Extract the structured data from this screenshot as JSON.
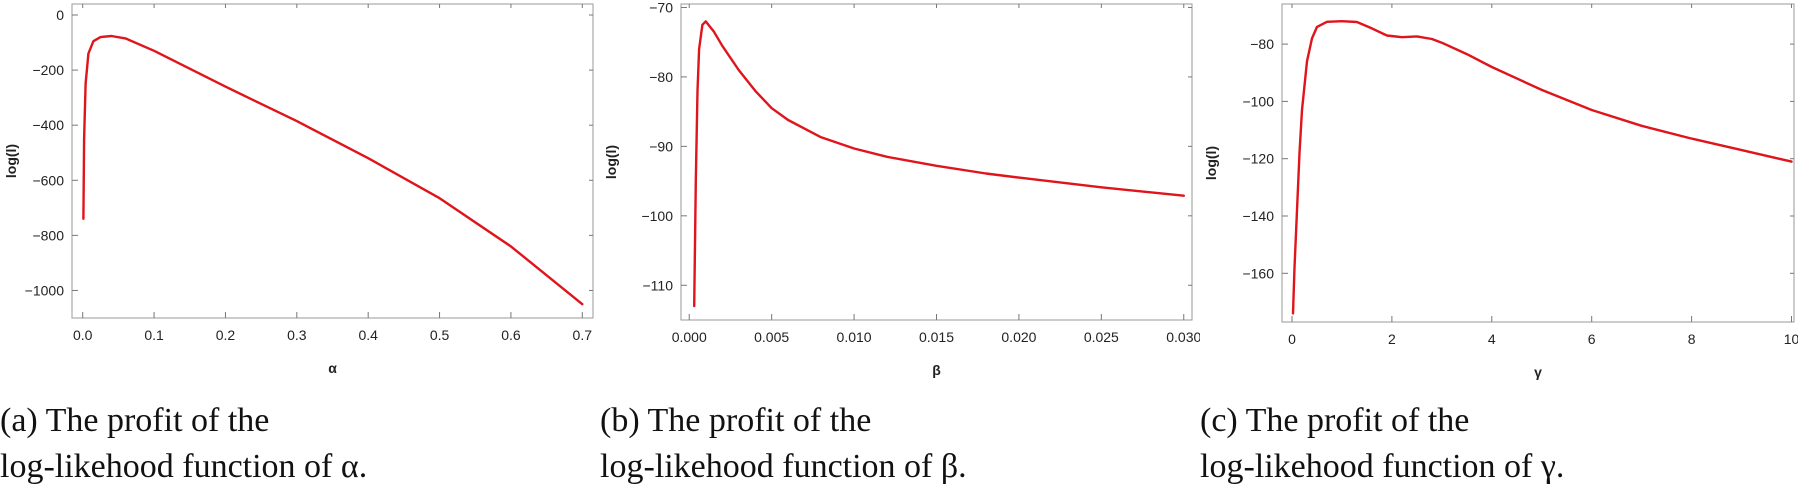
{
  "chart_data": [
    {
      "type": "line",
      "xlabel": "α",
      "ylabel": "log(l)",
      "xlim": [
        -0.015,
        0.715
      ],
      "ylim": [
        -1100,
        40
      ],
      "xticks": [
        "0.0",
        "0.1",
        "0.2",
        "0.3",
        "0.4",
        "0.5",
        "0.6",
        "0.7"
      ],
      "xtick_values": [
        0,
        0.1,
        0.2,
        0.3,
        0.4,
        0.5,
        0.6,
        0.7
      ],
      "yticks": [
        "0",
        "−200",
        "−400",
        "−600",
        "−800",
        "−1000"
      ],
      "ytick_values": [
        0,
        -200,
        -400,
        -600,
        -800,
        -1000
      ],
      "color": "#e0141b",
      "series": [
        {
          "x": [
            0.001,
            0.002,
            0.004,
            0.008,
            0.015,
            0.025,
            0.04,
            0.06,
            0.1,
            0.2,
            0.3,
            0.4,
            0.5,
            0.6,
            0.7
          ],
          "y": [
            -740,
            -450,
            -250,
            -140,
            -95,
            -80,
            -76,
            -85,
            -130,
            -260,
            -385,
            -520,
            -665,
            -840,
            -1050
          ]
        }
      ],
      "caption": [
        "(a) The profit of the",
        "log-likehood function of α."
      ]
    },
    {
      "type": "line",
      "xlabel": "β",
      "ylabel": "log(l)",
      "xlim": [
        -0.0005,
        0.0305
      ],
      "ylim": [
        -115,
        -69.5
      ],
      "xticks": [
        "0.000",
        "0.005",
        "0.010",
        "0.015",
        "0.020",
        "0.025",
        "0.030"
      ],
      "xtick_values": [
        0,
        0.005,
        0.01,
        0.015,
        0.02,
        0.025,
        0.03
      ],
      "yticks": [
        "−70",
        "−80",
        "−90",
        "−100",
        "−110"
      ],
      "ytick_values": [
        -70,
        -80,
        -90,
        -100,
        -110
      ],
      "color": "#e0141b",
      "series": [
        {
          "x": [
            0.0003,
            0.0004,
            0.0005,
            0.0006,
            0.0008,
            0.001,
            0.0015,
            0.002,
            0.003,
            0.004,
            0.005,
            0.006,
            0.008,
            0.01,
            0.012,
            0.015,
            0.018,
            0.02,
            0.025,
            0.03
          ],
          "y": [
            -113,
            -95,
            -82,
            -76,
            -72.5,
            -72,
            -73.5,
            -75.5,
            -79,
            -82,
            -84.5,
            -86.2,
            -88.7,
            -90.3,
            -91.5,
            -92.8,
            -93.9,
            -94.5,
            -95.9,
            -97.1
          ]
        }
      ],
      "caption": [
        "(b) The profit of the",
        "log-likehood function of β."
      ]
    },
    {
      "type": "line",
      "xlabel": "γ",
      "ylabel": "log(l)",
      "xlim": [
        -0.2,
        10.05
      ],
      "ylim": [
        -177,
        -66
      ],
      "xticks": [
        "0",
        "2",
        "4",
        "6",
        "8",
        "10"
      ],
      "xtick_values": [
        0,
        2,
        4,
        6,
        8,
        10
      ],
      "yticks": [
        "−80",
        "−100",
        "−120",
        "−140",
        "−160"
      ],
      "ytick_values": [
        -80,
        -100,
        -120,
        -140,
        -160
      ],
      "color": "#e0141b",
      "series": [
        {
          "x": [
            0.02,
            0.05,
            0.1,
            0.15,
            0.2,
            0.3,
            0.4,
            0.5,
            0.7,
            1.0,
            1.3,
            1.6,
            1.9,
            2.2,
            2.5,
            2.8,
            3.0,
            3.5,
            4.0,
            5.0,
            6.0,
            7.0,
            8.0,
            9.0,
            10.0
          ],
          "y": [
            -174,
            -158,
            -138,
            -118,
            -103,
            -86,
            -78,
            -74,
            -72.2,
            -72,
            -72.3,
            -74.5,
            -77,
            -77.6,
            -77.3,
            -78.2,
            -79.5,
            -83.5,
            -88,
            -96,
            -103,
            -108.5,
            -113,
            -117,
            -121
          ]
        }
      ],
      "caption": [
        "(c) The profit of the",
        "log-likehood function of γ."
      ]
    }
  ]
}
